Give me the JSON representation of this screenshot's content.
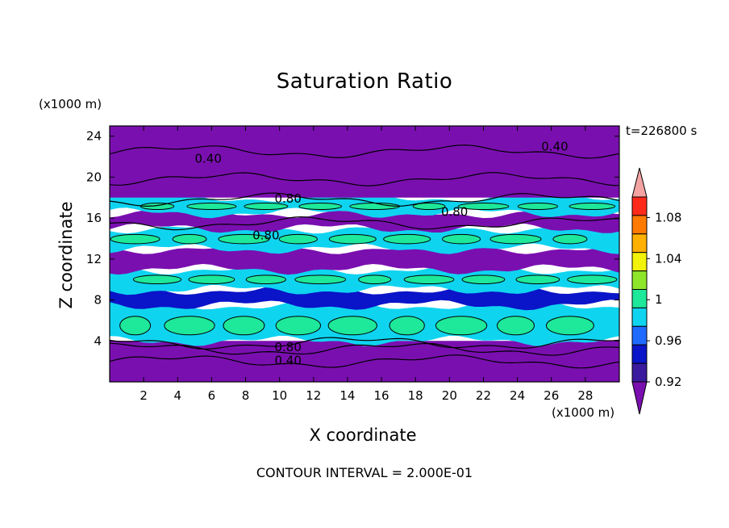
{
  "chart_data": {
    "type": "heatmap",
    "title": "Saturation Ratio",
    "xlabel": "X coordinate",
    "ylabel": "Z coordinate",
    "x_unit": "(x1000 m)",
    "y_unit": "(x1000 m)",
    "time_label": "t=226800 s",
    "footer": "CONTOUR INTERVAL = 2.000E-01",
    "xlim": [
      0,
      30
    ],
    "ylim": [
      0,
      25
    ],
    "x_ticks": [
      "2",
      "4",
      "6",
      "8",
      "10",
      "12",
      "14",
      "16",
      "18",
      "20",
      "22",
      "24",
      "26",
      "28"
    ],
    "y_ticks": [
      "4",
      "8",
      "12",
      "16",
      "20",
      "24"
    ],
    "contour_labels": [
      "0.40",
      "0.40",
      "0.80",
      "0.80",
      "0.80",
      "0.80",
      "0.40"
    ],
    "colorbar": {
      "levels": [
        0.92,
        0.94,
        0.96,
        0.98,
        1.0,
        1.02,
        1.04,
        1.06,
        1.08,
        1.1
      ],
      "tick_labels": [
        "0.92",
        "0.96",
        "1",
        "1.04",
        "1.08"
      ],
      "colors": [
        "#7a0fb0",
        "#3a1a9e",
        "#0a14c8",
        "#1f6bff",
        "#0fd4f0",
        "#1ee89a",
        "#8ee62a",
        "#f2f20a",
        "#ffb000",
        "#ff7a00",
        "#ff2a1a",
        "#f4a3a3"
      ]
    },
    "bands": [
      {
        "z0": 0,
        "z1": 4,
        "value": 0.9
      },
      {
        "z0": 4,
        "z1": 7.5,
        "value": 0.99
      },
      {
        "z0": 7.5,
        "z1": 9,
        "value": 0.95
      },
      {
        "z0": 9,
        "z1": 11,
        "value": 0.99
      },
      {
        "z0": 11,
        "z1": 13,
        "value": 0.9
      },
      {
        "z0": 13,
        "z1": 15,
        "value": 0.99
      },
      {
        "z0": 15,
        "z1": 16.5,
        "value": 0.9
      },
      {
        "z0": 16.5,
        "z1": 18,
        "value": 0.99
      },
      {
        "z0": 18,
        "z1": 25,
        "value": 0.9
      }
    ]
  }
}
